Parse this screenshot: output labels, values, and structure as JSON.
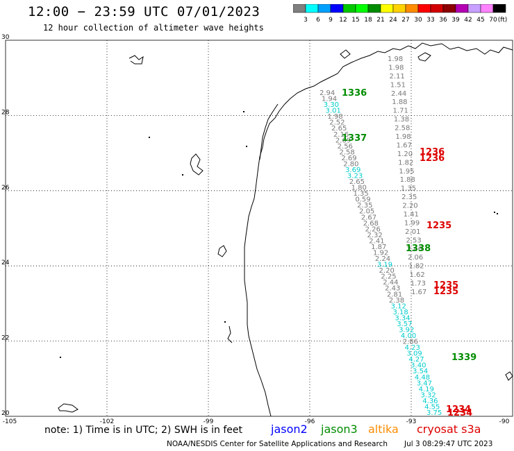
{
  "header": {
    "title": "12:00 − 23:59 UTC 07/01/2023",
    "subtitle": "12 hour collection of altimeter wave heights"
  },
  "colorbar": {
    "unit_label": "(ft)",
    "ticks": [
      "3",
      "6",
      "9",
      "12",
      "15",
      "18",
      "21",
      "24",
      "27",
      "30",
      "33",
      "36",
      "39",
      "42",
      "45",
      "70"
    ],
    "colors": [
      "#7f7f7f",
      "#00ffff",
      "#00a0ff",
      "#0000ff",
      "#00c800",
      "#00ff00",
      "#008c00",
      "#ffff00",
      "#ffd200",
      "#ff8c00",
      "#ff0000",
      "#d20000",
      "#8c0000",
      "#b400b4",
      "#c8a0ff",
      "#ff82ff",
      "#000000"
    ]
  },
  "map": {
    "lat_labels": [
      "30",
      "28",
      "26",
      "24",
      "22",
      "20"
    ],
    "lon_labels": [
      "-105",
      "-102",
      "-99",
      "-96",
      "-93",
      "-90"
    ],
    "track_colors": {
      "jason3": "#008c00",
      "cryosat": "#dd0000",
      "cyan": "#00cccc",
      "gray": "#777777"
    },
    "pass_labels": [
      {
        "text": "1336",
        "sat": "jason3"
      },
      {
        "text": "1337",
        "sat": "jason3"
      },
      {
        "text": "1338",
        "sat": "jason3"
      },
      {
        "text": "1339",
        "sat": "jason3"
      },
      {
        "text": "1236",
        "sat": "cryosat"
      },
      {
        "text": "1236",
        "sat": "cryosat"
      },
      {
        "text": "1235",
        "sat": "cryosat"
      },
      {
        "text": "1235",
        "sat": "cryosat"
      },
      {
        "text": "1235",
        "sat": "cryosat"
      },
      {
        "text": "1234",
        "sat": "cryosat"
      },
      {
        "text": "1234",
        "sat": "cryosat"
      }
    ],
    "track_a_values": [
      {
        "v": "2.94",
        "c": "gray"
      },
      {
        "v": "1.94",
        "c": "gray"
      },
      {
        "v": "3.30",
        "c": "cyan"
      },
      {
        "v": "3.01",
        "c": "cyan"
      },
      {
        "v": "1.98",
        "c": "gray"
      },
      {
        "v": "2.52",
        "c": "gray"
      },
      {
        "v": "2.65",
        "c": "gray"
      },
      {
        "v": "2.16",
        "c": "gray"
      },
      {
        "v": "2.69",
        "c": "gray"
      },
      {
        "v": "2.56",
        "c": "gray"
      },
      {
        "v": "2.58",
        "c": "gray"
      },
      {
        "v": "2.69",
        "c": "gray"
      },
      {
        "v": "2.80",
        "c": "gray"
      },
      {
        "v": "3.69",
        "c": "cyan"
      },
      {
        "v": "3.23",
        "c": "cyan"
      },
      {
        "v": "2.65",
        "c": "gray"
      },
      {
        "v": "1.80",
        "c": "gray"
      },
      {
        "v": "1.35",
        "c": "gray"
      },
      {
        "v": "0.59",
        "c": "gray"
      },
      {
        "v": "2.35",
        "c": "gray"
      },
      {
        "v": "2.05",
        "c": "gray"
      },
      {
        "v": "2.67",
        "c": "gray"
      },
      {
        "v": "2.68",
        "c": "gray"
      },
      {
        "v": "2.26",
        "c": "gray"
      },
      {
        "v": "2.32",
        "c": "gray"
      },
      {
        "v": "2.41",
        "c": "gray"
      },
      {
        "v": "1.87",
        "c": "gray"
      },
      {
        "v": "1.92",
        "c": "gray"
      },
      {
        "v": "2.24",
        "c": "gray"
      },
      {
        "v": "3.19",
        "c": "cyan"
      },
      {
        "v": "2.20",
        "c": "gray"
      },
      {
        "v": "2.25",
        "c": "gray"
      },
      {
        "v": "2.44",
        "c": "gray"
      },
      {
        "v": "2.43",
        "c": "gray"
      },
      {
        "v": "2.81",
        "c": "gray"
      },
      {
        "v": "2.38",
        "c": "gray"
      },
      {
        "v": "3.12",
        "c": "cyan"
      },
      {
        "v": "3.18",
        "c": "cyan"
      },
      {
        "v": "3.34",
        "c": "cyan"
      },
      {
        "v": "3.57",
        "c": "cyan"
      },
      {
        "v": "3.92",
        "c": "cyan"
      },
      {
        "v": "4.00",
        "c": "cyan"
      },
      {
        "v": "2.86",
        "c": "gray"
      },
      {
        "v": "4.23",
        "c": "cyan"
      },
      {
        "v": "3.09",
        "c": "cyan"
      },
      {
        "v": "4.27",
        "c": "cyan"
      },
      {
        "v": "3.40",
        "c": "cyan"
      },
      {
        "v": "3.54",
        "c": "cyan"
      },
      {
        "v": "4.48",
        "c": "cyan"
      },
      {
        "v": "3.47",
        "c": "cyan"
      },
      {
        "v": "4.19",
        "c": "cyan"
      },
      {
        "v": "3.32",
        "c": "cyan"
      },
      {
        "v": "4.36",
        "c": "cyan"
      },
      {
        "v": "4.55",
        "c": "cyan"
      },
      {
        "v": "3.75",
        "c": "cyan"
      }
    ],
    "track_b_values": [
      {
        "v": "1.98",
        "c": "gray"
      },
      {
        "v": "1.98",
        "c": "gray"
      },
      {
        "v": "2.11",
        "c": "gray"
      },
      {
        "v": "1.51",
        "c": "gray"
      },
      {
        "v": "2.44",
        "c": "gray"
      },
      {
        "v": "1.88",
        "c": "gray"
      },
      {
        "v": "1.71",
        "c": "gray"
      },
      {
        "v": "1.38",
        "c": "gray"
      },
      {
        "v": "2.58",
        "c": "gray"
      },
      {
        "v": "1.98",
        "c": "gray"
      },
      {
        "v": "1.67",
        "c": "gray"
      },
      {
        "v": "1.20",
        "c": "gray"
      },
      {
        "v": "1.82",
        "c": "gray"
      },
      {
        "v": "1.95",
        "c": "gray"
      },
      {
        "v": "1.88",
        "c": "gray"
      },
      {
        "v": "1.35",
        "c": "gray"
      },
      {
        "v": "2.35",
        "c": "gray"
      },
      {
        "v": "2.20",
        "c": "gray"
      },
      {
        "v": "1.41",
        "c": "gray"
      },
      {
        "v": "1.99",
        "c": "gray"
      },
      {
        "v": "2.01",
        "c": "gray"
      },
      {
        "v": "2.53",
        "c": "gray"
      },
      {
        "v": "2.46",
        "c": "gray"
      },
      {
        "v": "2.06",
        "c": "gray"
      },
      {
        "v": "1.82",
        "c": "gray"
      },
      {
        "v": "1.62",
        "c": "gray"
      },
      {
        "v": "1.73",
        "c": "gray"
      },
      {
        "v": "1.67",
        "c": "gray"
      }
    ]
  },
  "footer": {
    "note": "note: 1) Time is in UTC; 2) SWH is in feet",
    "satellites": [
      {
        "name": "jason2",
        "color": "#0000ff"
      },
      {
        "name": "jason3",
        "color": "#008c00"
      },
      {
        "name": "altika",
        "color": "#ff8c00"
      },
      {
        "name": "cryosat s3a",
        "color": "#dd0000"
      }
    ],
    "credit": "NOAA/NESDIS Center for Satellite Applications and Research",
    "timestamp": "Jul  3 08:29:47 UTC 2023"
  }
}
